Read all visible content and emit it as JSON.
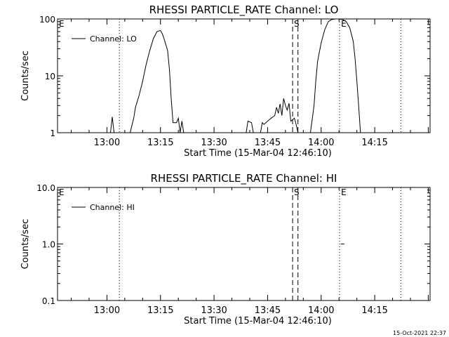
{
  "footer_timestamp": "15-Oct-2021 22:37",
  "chart_data": [
    {
      "type": "line",
      "title": "RHESSI PARTICLE_RATE Channel: LO",
      "xlabel": "Start Time (15-Mar-04 12:46:10)",
      "ylabel": "Counts/sec",
      "yscale": "log",
      "ylim": [
        1,
        100
      ],
      "yticks": [
        1,
        10,
        100
      ],
      "ytick_labels": [
        "1",
        "10",
        "100"
      ],
      "xlim_minutes": [
        "12:46:10",
        "14:30:30"
      ],
      "xticks": [
        "13:00",
        "13:15",
        "13:30",
        "13:45",
        "14:00",
        "14:15"
      ],
      "grid": false,
      "legend": {
        "position": "top-left",
        "entries": [
          "Channel: LO"
        ]
      },
      "markers": [
        {
          "label": "E",
          "time": "12:46:10",
          "style": "none"
        },
        {
          "label": "",
          "time": "13:03:30",
          "style": "dotted"
        },
        {
          "label": "S",
          "time": "13:52:00",
          "style": "dashed"
        },
        {
          "label": "",
          "time": "13:53:30",
          "style": "dashed"
        },
        {
          "label": "E",
          "time": "14:05:10",
          "style": "dotted"
        },
        {
          "label": "",
          "time": "14:22:20",
          "style": "dotted"
        }
      ],
      "series": [
        {
          "name": "Channel: LO",
          "segments": [
            [
              [
                "13:01:00",
                1.0
              ],
              [
                "13:01:30",
                1.9
              ],
              [
                "13:02:00",
                1.0
              ]
            ],
            [
              [
                "13:06:30",
                1.0
              ],
              [
                "13:07:30",
                1.8
              ],
              [
                "13:08:00",
                2.8
              ],
              [
                "13:09:00",
                4.5
              ],
              [
                "13:10:00",
                8
              ],
              [
                "13:11:00",
                16
              ],
              [
                "13:12:00",
                28
              ],
              [
                "13:13:00",
                45
              ],
              [
                "13:14:00",
                60
              ],
              [
                "13:15:00",
                63
              ],
              [
                "13:15:30",
                55
              ],
              [
                "13:16:00",
                45
              ],
              [
                "13:17:00",
                28
              ],
              [
                "13:17:30",
                13
              ],
              [
                "13:18:00",
                4
              ],
              [
                "13:18:30",
                1.5
              ],
              [
                "13:19:30",
                1.5
              ],
              [
                "13:20:00",
                1.8
              ],
              [
                "13:20:30",
                1.0
              ],
              [
                "13:21:00",
                1.6
              ],
              [
                "13:21:30",
                1.0
              ]
            ],
            [
              [
                "13:39:00",
                1.0
              ],
              [
                "13:39:30",
                1.6
              ],
              [
                "13:40:30",
                1.5
              ],
              [
                "13:41:00",
                1.0
              ],
              [
                "13:43:00",
                1.0
              ],
              [
                "13:43:30",
                1.5
              ],
              [
                "13:44:00",
                1.4
              ],
              [
                "13:45:00",
                1.6
              ],
              [
                "13:46:00",
                1.8
              ],
              [
                "13:47:00",
                2.0
              ],
              [
                "13:47:30",
                2.8
              ],
              [
                "13:48:00",
                2.2
              ],
              [
                "13:48:30",
                3.2
              ],
              [
                "13:49:00",
                2.0
              ],
              [
                "13:49:30",
                4.0
              ],
              [
                "13:50:00",
                3.0
              ],
              [
                "13:50:30",
                2.5
              ],
              [
                "13:51:00",
                3.3
              ],
              [
                "13:51:30",
                1.6
              ],
              [
                "13:52:30",
                1.8
              ],
              [
                "13:53:00",
                1.4
              ],
              [
                "13:53:30",
                1.0
              ]
            ],
            [
              [
                "13:57:00",
                1.0
              ],
              [
                "13:58:00",
                3
              ],
              [
                "13:58:30",
                8
              ],
              [
                "13:59:00",
                18
              ],
              [
                "14:00:00",
                38
              ],
              [
                "14:01:00",
                65
              ],
              [
                "14:02:00",
                90
              ],
              [
                "14:03:00",
                98
              ],
              [
                "14:04:00",
                100
              ],
              [
                "14:05:00",
                100
              ],
              [
                "14:06:00",
                98
              ],
              [
                "14:07:00",
                90
              ],
              [
                "14:08:00",
                70
              ],
              [
                "14:09:00",
                40
              ],
              [
                "14:09:30",
                20
              ],
              [
                "14:10:00",
                8
              ],
              [
                "14:10:30",
                3
              ],
              [
                "14:11:00",
                1.0
              ]
            ]
          ]
        }
      ]
    },
    {
      "type": "line",
      "title": "RHESSI PARTICLE_RATE Channel: HI",
      "xlabel": "Start Time (15-Mar-04 12:46:10)",
      "ylabel": "Counts/sec",
      "yscale": "log",
      "ylim": [
        0.1,
        10
      ],
      "yticks": [
        0.1,
        1,
        10
      ],
      "ytick_labels": [
        "0.1",
        "1.0",
        "10.0"
      ],
      "xlim_minutes": [
        "12:46:10",
        "14:30:30"
      ],
      "xticks": [
        "13:00",
        "13:15",
        "13:30",
        "13:45",
        "14:00",
        "14:15"
      ],
      "grid": false,
      "legend": {
        "position": "top-left",
        "entries": [
          "Channel: HI"
        ]
      },
      "markers": [
        {
          "label": "E",
          "time": "12:46:10",
          "style": "none"
        },
        {
          "label": "",
          "time": "13:03:30",
          "style": "dotted"
        },
        {
          "label": "S",
          "time": "13:52:00",
          "style": "dashed"
        },
        {
          "label": "",
          "time": "13:53:30",
          "style": "dashed"
        },
        {
          "label": "E",
          "time": "14:05:10",
          "style": "dotted"
        },
        {
          "label": "",
          "time": "14:22:20",
          "style": "dotted"
        }
      ],
      "series": [
        {
          "name": "Channel: HI",
          "segments": [
            [
              [
                "14:05:30",
                1.0
              ],
              [
                "14:06:30",
                1.0
              ]
            ]
          ]
        }
      ]
    }
  ]
}
